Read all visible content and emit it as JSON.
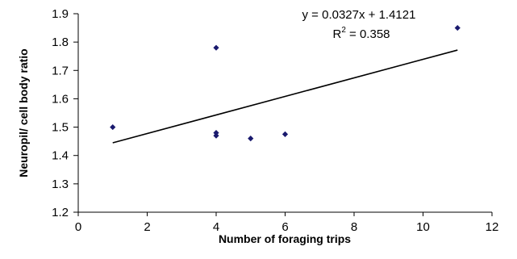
{
  "chart_data": {
    "type": "scatter",
    "xlabel": "Number of foraging trips",
    "ylabel": "Neuropil/ cell body ratio",
    "xlim": [
      0,
      12
    ],
    "ylim": [
      1.2,
      1.9
    ],
    "x_ticks": [
      "0",
      "2",
      "4",
      "6",
      "8",
      "10",
      "12"
    ],
    "y_ticks": [
      "1.2",
      "1.3",
      "1.4",
      "1.5",
      "1.6",
      "1.7",
      "1.8",
      "1.9"
    ],
    "points": [
      {
        "x": 1,
        "y": 1.5
      },
      {
        "x": 4,
        "y": 1.78
      },
      {
        "x": 4,
        "y": 1.48
      },
      {
        "x": 4,
        "y": 1.47
      },
      {
        "x": 5,
        "y": 1.46
      },
      {
        "x": 6,
        "y": 1.475
      },
      {
        "x": 11,
        "y": 1.85
      }
    ],
    "trendline": {
      "type": "linear",
      "slope": 0.0327,
      "intercept": 1.4121,
      "x_range": [
        1,
        11
      ],
      "equation": "y = 0.0327x + 1.4121",
      "r2_prefix": "R",
      "r2_exp": "2",
      "r2_value": " = 0.358"
    },
    "marker_color": "#1a1a6e",
    "line_color": "#000000",
    "grid": false
  }
}
